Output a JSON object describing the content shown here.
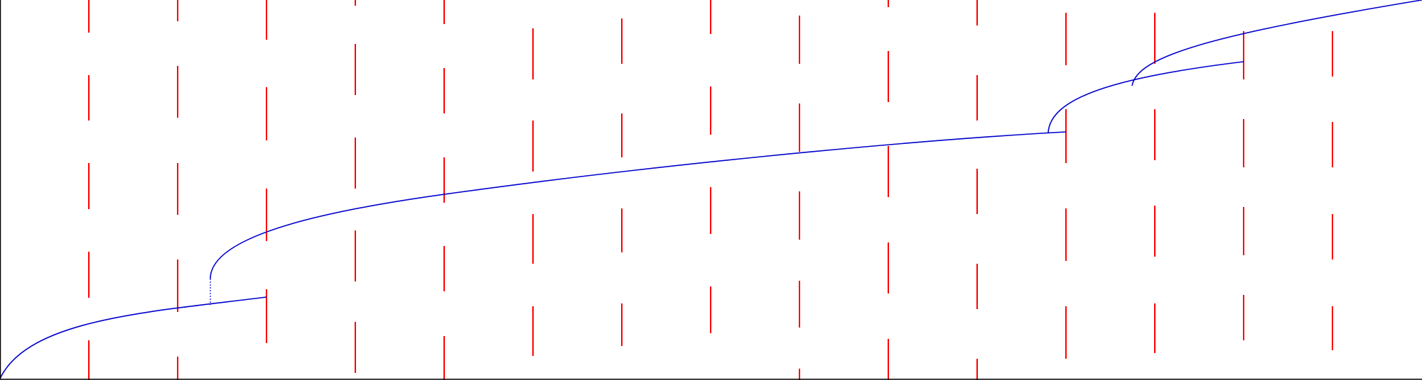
{
  "colors": {
    "background": "#ffffff",
    "frame": "#000000",
    "segment": "#ff0000",
    "path": "#0000cc"
  },
  "diagram": {
    "frame_edges": [
      "left",
      "bottom"
    ],
    "segment_count": 76,
    "path_pieces": 6,
    "dashed_connector": true
  }
}
